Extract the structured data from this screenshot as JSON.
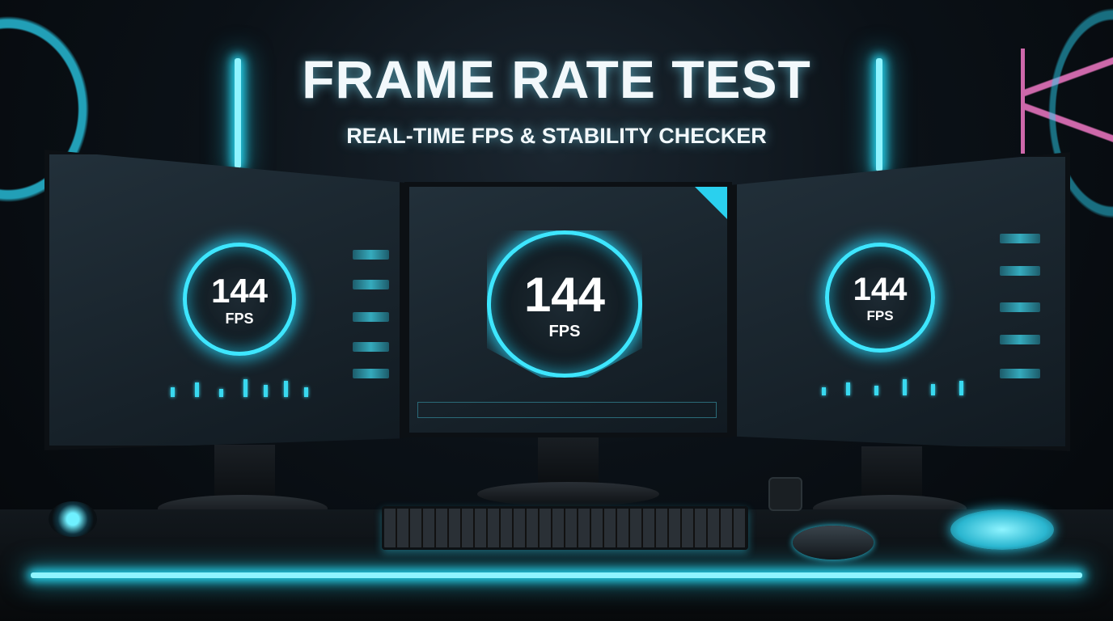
{
  "header": {
    "title": "FRAME RATE TEST",
    "subtitle": "REAL-TIME FPS & STABILITY CHECKER"
  },
  "monitors": [
    {
      "position": "left",
      "fps_value": "144",
      "fps_unit": "FPS"
    },
    {
      "position": "center",
      "fps_value": "144",
      "fps_unit": "FPS"
    },
    {
      "position": "right",
      "fps_value": "144",
      "fps_unit": "FPS"
    }
  ],
  "colors": {
    "accent": "#3ee6ff",
    "pink": "#ff7fd0",
    "background": "#05080c"
  }
}
